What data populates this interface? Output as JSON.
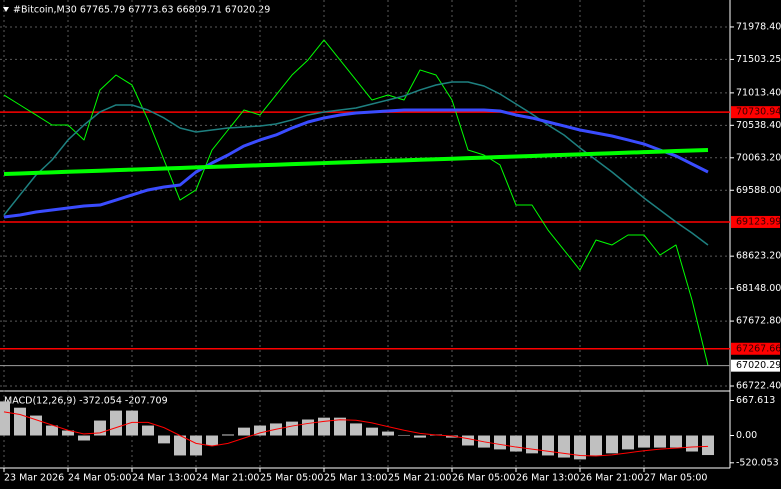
{
  "chart_data": [
    {
      "type": "line",
      "title": "#Bitcoin,M30  67765.79 67773.63 66809.71 67020.29",
      "categories": [
        "23 Mar 2026",
        null,
        null,
        null,
        "24 Mar 05:00",
        null,
        null,
        null,
        "24 Mar 13:00",
        null,
        null,
        null,
        "24 Mar 21:00",
        null,
        null,
        null,
        "25 Mar 05:00",
        null,
        null,
        null,
        "25 Mar 13:00",
        null,
        null,
        null,
        "25 Mar 21:00",
        null,
        null,
        null,
        "26 Mar 05:00",
        null,
        null,
        null,
        "26 Mar 13:00",
        null,
        null,
        null,
        "26 Mar 21:00",
        null,
        null,
        null,
        "27 Mar 05:00",
        null,
        null,
        null,
        null
      ],
      "series": [
        {
          "color": "#00ff00",
          "width": 1,
          "values": [
            70982,
            70836,
            70690,
            70543,
            70543,
            70324,
            71056,
            71275,
            71129,
            70617,
            70031,
            69445,
            69592,
            70177,
            70470,
            70763,
            70690,
            70982,
            71275,
            71495,
            71788,
            71495,
            71202,
            70909,
            70982,
            70909,
            71349,
            71275,
            70909,
            70177,
            70104,
            69958,
            69372,
            69372,
            69006,
            68713,
            68420,
            68860,
            68787,
            68933,
            68933,
            68640,
            68787,
            67981,
            67020.29
          ]
        },
        {
          "color": "#1e8080",
          "width": 1.5,
          "values": [
            69226,
            69519,
            69811,
            70031,
            70324,
            70543,
            70734,
            70836,
            70836,
            70763,
            70646,
            70499,
            70441,
            70470,
            70499,
            70514,
            70529,
            70558,
            70617,
            70690,
            70734,
            70763,
            70792,
            70851,
            70909,
            70968,
            71056,
            71129,
            71173,
            71173,
            71114,
            70997,
            70851,
            70704,
            70543,
            70397,
            70207,
            70031,
            69855,
            69665,
            69475,
            69299,
            69123,
            68962,
            68787
          ]
        },
        {
          "color": "#3a4cff",
          "width": 3,
          "values": [
            69196,
            69226,
            69270,
            69299,
            69328,
            69358,
            69372,
            69445,
            69519,
            69592,
            69636,
            69665,
            69855,
            69987,
            70104,
            70236,
            70324,
            70397,
            70499,
            70587,
            70646,
            70690,
            70719,
            70734,
            70748,
            70763,
            70763,
            70763,
            70763,
            70763,
            70763,
            70748,
            70690,
            70646,
            70587,
            70529,
            70470,
            70426,
            70382,
            70324,
            70265,
            70177,
            70090,
            69972,
            69855
          ]
        },
        {
          "color": "#00ff00",
          "width": 4,
          "values": [
            69826,
            69834,
            69842,
            69850,
            69858,
            69866,
            69874,
            69882,
            69890,
            69898,
            69906,
            69914,
            69922,
            69930,
            69938,
            69946,
            69954,
            69962,
            69970,
            69978,
            69986,
            69994,
            70002,
            70010,
            70018,
            70026,
            70034,
            70042,
            70050,
            70058,
            70066,
            70074,
            70082,
            70090,
            70098,
            70106,
            70114,
            70122,
            70130,
            70138,
            70146,
            70154,
            70162,
            70170,
            70178
          ]
        }
      ],
      "ylim": [
        66664,
        72373
      ],
      "yticks": [
        {
          "value": 71978.4,
          "label": "71978.40"
        },
        71503.25,
        {
          "value": 71013.4,
          "label": "71013.40"
        },
        {
          "value": 70538.4,
          "label": "70538.40"
        },
        {
          "value": 70063.2,
          "label": "70063.20"
        },
        {
          "value": 69588.0,
          "label": "69588.00"
        },
        {
          "value": 68623.2,
          "label": "68623.20"
        },
        {
          "value": 68148.0,
          "label": "68148.00"
        },
        {
          "value": 67672.8,
          "label": "67672.80"
        },
        {
          "value": 66722.4,
          "label": "66722.40"
        }
      ],
      "hlines": [
        {
          "value": 70730.94,
          "color": "#ff0000"
        },
        {
          "value": 69123.99,
          "color": "#ff0000"
        },
        {
          "value": 67267.66,
          "color": "#ff0000"
        }
      ],
      "last_price": 67020.29,
      "grid": true
    },
    {
      "type": "bar",
      "title": "MACD(12,26,9) -372.054 -207.709",
      "series": [
        {
          "type": "bar",
          "color": "#c0c0c0",
          "values": [
            650,
            530,
            380,
            190,
            95,
            -95,
            285,
            475,
            475,
            190,
            -150,
            -380,
            -380,
            -190,
            20,
            150,
            190,
            230,
            265,
            305,
            340,
            340,
            230,
            150,
            75,
            10,
            -40,
            20,
            -40,
            -190,
            -230,
            -265,
            -305,
            -340,
            -380,
            -420,
            -455,
            -380,
            -340,
            -265,
            -230,
            -230,
            -230,
            -305,
            -372.054
          ]
        },
        {
          "type": "line",
          "color": "#ff0000",
          "values": [
            450,
            400,
            300,
            200,
            100,
            30,
            50,
            150,
            250,
            250,
            150,
            0,
            -150,
            -200,
            -150,
            -50,
            50,
            120,
            180,
            230,
            270,
            300,
            290,
            240,
            170,
            100,
            40,
            10,
            -10,
            -60,
            -120,
            -170,
            -220,
            -260,
            -300,
            -340,
            -380,
            -390,
            -370,
            -330,
            -290,
            -260,
            -240,
            -220,
            -207.709
          ]
        }
      ],
      "ylim": [
        -600,
        810
      ],
      "yticks": [
        667.613,
        {
          "value": 0,
          "label": "0.00"
        },
        -520.053
      ]
    }
  ]
}
